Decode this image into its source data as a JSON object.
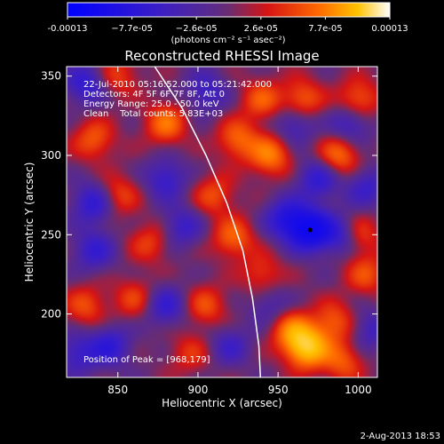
{
  "chart_data": {
    "type": "heatmap",
    "title": "Reconstructed RHESSI Image",
    "xlabel": "Heliocentric X (arcsec)",
    "ylabel": "Heliocentric Y (arcsec)",
    "xlim": [
      818,
      1012
    ],
    "ylim": [
      160,
      356
    ],
    "x_ticks": [
      850,
      900,
      950,
      1000
    ],
    "y_ticks": [
      200,
      250,
      300,
      350
    ],
    "colorbar": {
      "range": [
        -0.00013,
        0.00013
      ],
      "tick_labels": [
        "-0.00013",
        "−7.7e-05",
        "−2.6e-05",
        "2.6e-05",
        "7.7e-05",
        "0.00013"
      ],
      "units": "(photons cm⁻² s⁻¹ asec⁻²)"
    },
    "annotations": [
      "22-Jul-2010 05:16:52.000 to 05:21:42.000",
      "Detectors: 4F 5F 6F 7F 8F, Att 0",
      "Energy Range: 25.0 - 50.0 keV",
      "Clean    Total counts: 5.83E+03"
    ],
    "peak_label": "Position of Peak = [968,179]",
    "peak": [
      968,
      179
    ],
    "min_marker": [
      970,
      253
    ],
    "limb_curve": [
      [
        873,
        356
      ],
      [
        890,
        330
      ],
      [
        905,
        300
      ],
      [
        918,
        270
      ],
      [
        928,
        240
      ],
      [
        934,
        210
      ],
      [
        938,
        180
      ],
      [
        939,
        160
      ]
    ],
    "blobs": [
      {
        "x": 968,
        "y": 179,
        "v": 1.0
      },
      {
        "x": 958,
        "y": 190,
        "v": 0.55
      },
      {
        "x": 985,
        "y": 195,
        "v": 0.45
      },
      {
        "x": 945,
        "y": 300,
        "v": 0.6
      },
      {
        "x": 925,
        "y": 310,
        "v": 0.5
      },
      {
        "x": 988,
        "y": 300,
        "v": 0.55
      },
      {
        "x": 1000,
        "y": 335,
        "v": 0.5
      },
      {
        "x": 965,
        "y": 335,
        "v": 0.5
      },
      {
        "x": 940,
        "y": 335,
        "v": 0.45
      },
      {
        "x": 880,
        "y": 320,
        "v": 0.55
      },
      {
        "x": 835,
        "y": 310,
        "v": 0.45
      },
      {
        "x": 850,
        "y": 275,
        "v": 0.4
      },
      {
        "x": 910,
        "y": 275,
        "v": 0.4
      },
      {
        "x": 870,
        "y": 245,
        "v": 0.35
      },
      {
        "x": 922,
        "y": 248,
        "v": 0.5
      },
      {
        "x": 1000,
        "y": 250,
        "v": 0.45
      },
      {
        "x": 1005,
        "y": 225,
        "v": 0.4
      },
      {
        "x": 830,
        "y": 205,
        "v": 0.4
      },
      {
        "x": 860,
        "y": 210,
        "v": 0.35
      },
      {
        "x": 905,
        "y": 205,
        "v": 0.4
      },
      {
        "x": 940,
        "y": 225,
        "v": 0.35
      },
      {
        "x": 990,
        "y": 170,
        "v": 0.45
      },
      {
        "x": 895,
        "y": 175,
        "v": 0.3
      },
      {
        "x": 850,
        "y": 350,
        "v": 0.35
      },
      {
        "x": 970,
        "y": 253,
        "v": -1.0
      },
      {
        "x": 955,
        "y": 260,
        "v": -0.6
      },
      {
        "x": 990,
        "y": 250,
        "v": -0.5
      },
      {
        "x": 975,
        "y": 285,
        "v": -0.5
      },
      {
        "x": 995,
        "y": 320,
        "v": -0.45
      },
      {
        "x": 960,
        "y": 320,
        "v": -0.4
      },
      {
        "x": 830,
        "y": 345,
        "v": -0.5
      },
      {
        "x": 835,
        "y": 270,
        "v": -0.55
      },
      {
        "x": 835,
        "y": 240,
        "v": -0.45
      },
      {
        "x": 845,
        "y": 180,
        "v": -0.5
      },
      {
        "x": 825,
        "y": 175,
        "v": -0.4
      },
      {
        "x": 880,
        "y": 285,
        "v": -0.45
      },
      {
        "x": 890,
        "y": 255,
        "v": -0.4
      },
      {
        "x": 880,
        "y": 205,
        "v": -0.45
      },
      {
        "x": 905,
        "y": 340,
        "v": -0.4
      },
      {
        "x": 920,
        "y": 180,
        "v": -0.35
      },
      {
        "x": 1005,
        "y": 280,
        "v": -0.4
      },
      {
        "x": 945,
        "y": 205,
        "v": -0.3
      },
      {
        "x": 1008,
        "y": 190,
        "v": -0.35
      }
    ]
  },
  "footer": {
    "timestamp": "2-Aug-2013 18:53"
  }
}
